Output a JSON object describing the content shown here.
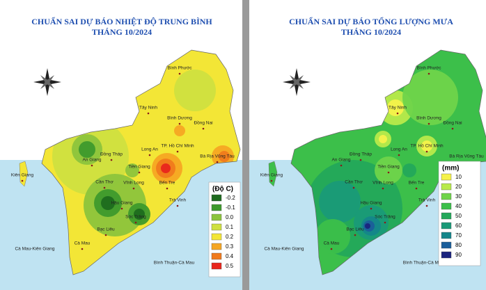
{
  "maps": [
    {
      "title": "CHUẨN SAI DỰ BÁO NHIỆT ĐỘ TRUNG BÌNH",
      "subtitle": "THÁNG 10/2024",
      "legend": {
        "title": "(Độ C)",
        "items": [
          {
            "label": "-0.2",
            "color": "#1e6b1e"
          },
          {
            "label": "-0.1",
            "color": "#3e9a2c"
          },
          {
            "label": "0.0",
            "color": "#8cc43c"
          },
          {
            "label": "0.1",
            "color": "#cfe040"
          },
          {
            "label": "0.2",
            "color": "#f3e636"
          },
          {
            "label": "0.3",
            "color": "#f5a623"
          },
          {
            "label": "0.4",
            "color": "#f07a1c"
          },
          {
            "label": "0.5",
            "color": "#e8261c"
          }
        ]
      },
      "places": [
        "Bình Phước",
        "Tây Ninh",
        "Bình Dương",
        "Đồng Nai",
        "Long An",
        "TP. Hồ Chí Minh",
        "Bà Rịa Vũng Tàu",
        "An Giang",
        "Đồng Tháp",
        "Tiền Giang",
        "Kiên Giang",
        "Cần Thơ",
        "Vĩnh Long",
        "Bến Tre",
        "Hậu Giang",
        "Sóc Trăng",
        "Trà Vinh",
        "Bạc Liêu",
        "Cà Mau",
        "Cà Mau-Kiên Giang",
        "Bình Thuận-Cà Mau"
      ]
    },
    {
      "title": "CHUẨN SAI DỰ BÁO TỔNG LƯỢNG MƯA",
      "subtitle": "THÁNG 10/2024",
      "legend": {
        "title": "(mm)",
        "items": [
          {
            "label": "10",
            "color": "#f5f24a"
          },
          {
            "label": "20",
            "color": "#b8ea4a"
          },
          {
            "label": "30",
            "color": "#6fd44a"
          },
          {
            "label": "40",
            "color": "#3cbf4a"
          },
          {
            "label": "50",
            "color": "#23a85a"
          },
          {
            "label": "60",
            "color": "#1a9a78"
          },
          {
            "label": "70",
            "color": "#14868a"
          },
          {
            "label": "80",
            "color": "#1a5e9a"
          },
          {
            "label": "90",
            "color": "#1a237e"
          }
        ]
      },
      "places": [
        "Bình Phước",
        "Tây Ninh",
        "Bình Dương",
        "Đồng Nai",
        "Long An",
        "TP. Hồ Chí Minh",
        "Bà Rịa Vũng Tàu",
        "An Giang",
        "Đồng Tháp",
        "Tiền Giang",
        "Kiên Giang",
        "Cần Thơ",
        "Vĩnh Long",
        "Bến Tre",
        "Hậu Giang",
        "Sóc Trăng",
        "Trà Vinh",
        "Bạc Liêu",
        "Cà Mau",
        "Cà Mau-Kiên Giang",
        "Bình Thuận-Cà Mau"
      ]
    }
  ]
}
